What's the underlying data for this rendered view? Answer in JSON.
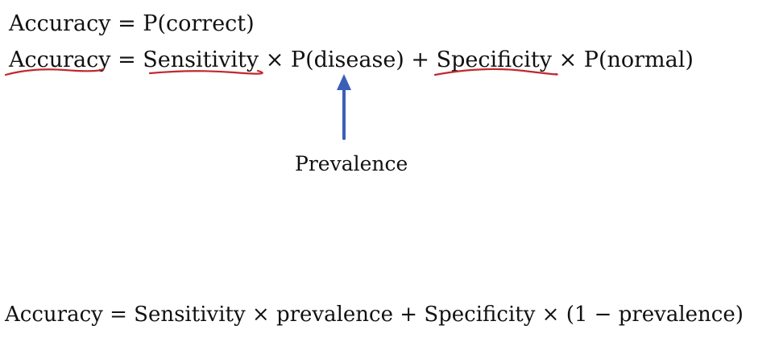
{
  "equations": {
    "line1": "Accuracy  = P(correct)",
    "line2": "Accuracy = Sensitivity × P(disease) + Specificity × P(normal)",
    "line3": "Accuracy = Sensitivity × prevalence + Specificity × (1 − prevalence)"
  },
  "annotation": {
    "label": "Prevalence"
  },
  "colors": {
    "text": "#111111",
    "underline": "#c0282d",
    "arrow": "#3a5fb8"
  }
}
